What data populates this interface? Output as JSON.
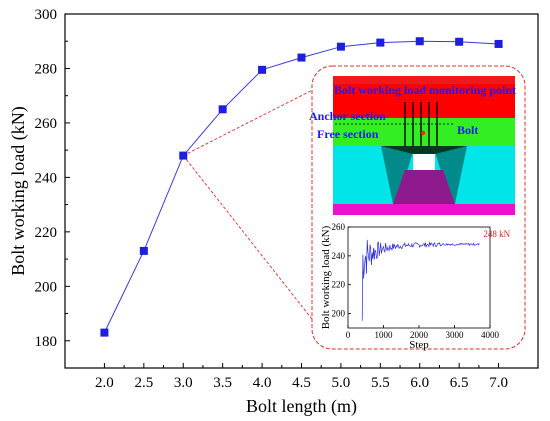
{
  "chart_data": {
    "type": "line",
    "title": "",
    "xlabel": "Bolt length (m)",
    "ylabel": "Bolt working load (kN)",
    "xlim": [
      1.5,
      7.5
    ],
    "ylim": [
      170,
      300
    ],
    "x_ticks": [
      "2.0",
      "2.5",
      "3.0",
      "3.5",
      "4.0",
      "4.5",
      "5.0",
      "5.5",
      "6.0",
      "6.5",
      "7.0"
    ],
    "y_ticks": [
      "180",
      "200",
      "220",
      "240",
      "260",
      "280",
      "300"
    ],
    "series": [
      {
        "marker": "square",
        "color": "#1f1fe0",
        "x": [
          2.0,
          2.5,
          3.0,
          3.5,
          4.0,
          4.5,
          5.0,
          5.5,
          6.0,
          6.5,
          7.0
        ],
        "y": [
          183,
          213,
          248,
          265,
          279.5,
          284,
          288,
          289.5,
          290,
          289.8,
          289
        ]
      }
    ],
    "grid": false,
    "legend": "none"
  },
  "inset": {
    "model_labels": {
      "monitoring": "Bolt working load  monitoring point",
      "anchor": "Anchor section",
      "free": "Free section",
      "bolt": "Bolt"
    },
    "colors": {
      "top_band": "#f01818",
      "red_layer": "#ff0000",
      "green_layer": "#33ee22",
      "cyan_layer": "#00e5e8",
      "teal_wall": "#008b8b",
      "purple_floor": "#8e1a8e",
      "magenta_base": "#ee11cc"
    },
    "sub_chart": {
      "xlabel": "Step",
      "ylabel": "Bolt working load (kN)",
      "x_ticks": [
        "0",
        "1000",
        "2000",
        "3000",
        "4000"
      ],
      "y_ticks": [
        "200",
        "220",
        "240",
        "260"
      ],
      "xlim": [
        0,
        4000
      ],
      "ylim": [
        190,
        260
      ],
      "annotation": "248 kN"
    }
  }
}
